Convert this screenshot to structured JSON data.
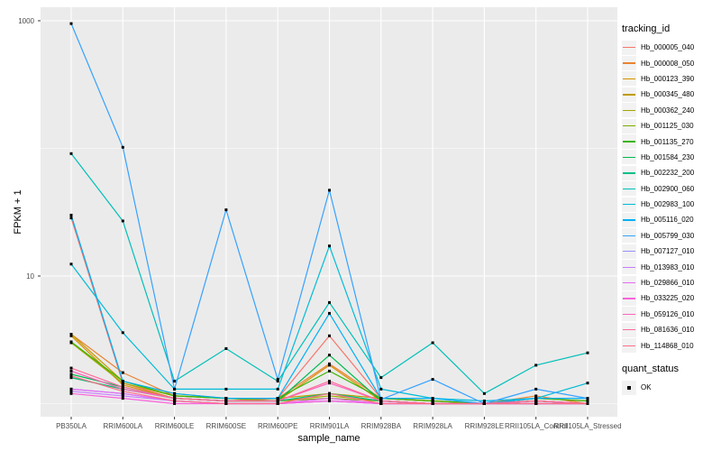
{
  "chart_data": {
    "type": "line",
    "title": "",
    "x_axis": {
      "label": "sample_name",
      "categories": [
        "PB350LA",
        "RRIM600LA",
        "RRIM600LE",
        "RRIM600SE",
        "RRIM600PE",
        "RRIM901LA",
        "RRIM928BA",
        "RRIM928LA",
        "RRIM928LE",
        "RRII105LA_Control",
        "RRII105LA_Stressed"
      ]
    },
    "y_axis": {
      "label": "FPKM + 1",
      "scale": "log10",
      "tick_labels": [
        "1000",
        "10"
      ],
      "tick_values": [
        1000,
        10
      ],
      "minor_gridline_values": [
        100,
        1
      ],
      "range_approx": [
        0.9,
        1100
      ]
    },
    "grid": true,
    "panel_background": "#EBEBEB",
    "gridline_color": "#FFFFFF",
    "point_color": "#000000",
    "legend": {
      "title": "tracking_id",
      "position": "right"
    },
    "point_status_legend": {
      "title": "quant_status",
      "items": [
        "OK"
      ]
    },
    "series": [
      {
        "name": "Hb_000005_040",
        "color": "#F8766D",
        "values": [
          28.5,
          1.45,
          1.1,
          1.05,
          1.1,
          3.4,
          1.1,
          1.05,
          1.0,
          1.1,
          1.05
        ]
      },
      {
        "name": "Hb_000008_050",
        "color": "#EA8331",
        "values": [
          3.5,
          1.75,
          1.15,
          1.1,
          1.1,
          2.05,
          1.1,
          1.05,
          1.0,
          1.15,
          1.0
        ]
      },
      {
        "name": "Hb_000123_390",
        "color": "#D89000",
        "values": [
          3.4,
          1.4,
          1.1,
          1.05,
          1.05,
          2.0,
          1.05,
          1.0,
          1.0,
          1.05,
          1.0
        ]
      },
      {
        "name": "Hb_000345_480",
        "color": "#C09B00",
        "values": [
          3.5,
          1.5,
          1.2,
          1.1,
          1.1,
          1.2,
          1.1,
          1.05,
          1.0,
          1.05,
          1.0
        ]
      },
      {
        "name": "Hb_000362_240",
        "color": "#A3A500",
        "values": [
          3.0,
          1.45,
          1.15,
          1.1,
          1.05,
          1.15,
          1.05,
          1.0,
          1.0,
          1.05,
          1.0
        ]
      },
      {
        "name": "Hb_001125_030",
        "color": "#7CAE00",
        "values": [
          1.6,
          1.3,
          1.1,
          1.05,
          1.05,
          1.1,
          1.05,
          1.0,
          1.0,
          1.0,
          1.0
        ]
      },
      {
        "name": "Hb_001135_270",
        "color": "#39B600",
        "values": [
          3.05,
          1.5,
          1.15,
          1.1,
          1.1,
          1.8,
          1.1,
          1.05,
          1.0,
          1.1,
          1.05
        ]
      },
      {
        "name": "Hb_001584_230",
        "color": "#00BB4E",
        "values": [
          1.7,
          1.35,
          1.1,
          1.05,
          1.05,
          2.4,
          1.05,
          1.0,
          1.0,
          1.05,
          1.0
        ]
      },
      {
        "name": "Hb_002232_200",
        "color": "#00C087",
        "values": [
          1.6,
          1.3,
          1.1,
          1.05,
          1.05,
          1.2,
          1.05,
          1.0,
          1.0,
          1.0,
          1.0
        ]
      },
      {
        "name": "Hb_002900_060",
        "color": "#00C0B8",
        "values": [
          91,
          27,
          1.5,
          2.7,
          1.5,
          6.2,
          1.6,
          3.0,
          1.2,
          2.0,
          2.5
        ]
      },
      {
        "name": "Hb_002983_100",
        "color": "#00BCD8",
        "values": [
          12.4,
          3.6,
          1.3,
          1.3,
          1.3,
          17.2,
          1.3,
          1.1,
          1.05,
          1.1,
          1.45
        ]
      },
      {
        "name": "Hb_005116_020",
        "color": "#00B0F6",
        "values": [
          30,
          1.5,
          1.2,
          1.1,
          1.1,
          5.1,
          1.1,
          1.1,
          1.0,
          1.1,
          1.1
        ]
      },
      {
        "name": "Hb_005799_030",
        "color": "#35A2FF",
        "values": [
          950,
          102,
          1.3,
          33,
          1.55,
          47,
          1.08,
          1.55,
          1.0,
          1.3,
          1.1
        ]
      },
      {
        "name": "Hb_007127_010",
        "color": "#9590FF",
        "values": [
          1.3,
          1.2,
          1.05,
          1.0,
          1.0,
          1.05,
          1.0,
          1.0,
          1.0,
          1.0,
          1.0
        ]
      },
      {
        "name": "Hb_013983_010",
        "color": "#C77CFF",
        "values": [
          1.25,
          1.15,
          1.05,
          1.0,
          1.0,
          1.05,
          1.0,
          1.0,
          1.0,
          1.0,
          1.0
        ]
      },
      {
        "name": "Hb_029866_010",
        "color": "#E76BF3",
        "values": [
          1.3,
          1.2,
          1.05,
          1.0,
          1.0,
          1.1,
          1.0,
          1.0,
          1.0,
          1.0,
          1.0
        ]
      },
      {
        "name": "Hb_033225_020",
        "color": "#FA62DB",
        "values": [
          1.2,
          1.1,
          1.0,
          1.0,
          1.0,
          1.05,
          1.0,
          1.0,
          1.0,
          1.0,
          1.0
        ]
      },
      {
        "name": "Hb_059126_010",
        "color": "#FF62BC",
        "values": [
          1.8,
          1.3,
          1.1,
          1.05,
          1.05,
          1.45,
          1.05,
          1.0,
          1.0,
          1.05,
          1.0
        ]
      },
      {
        "name": "Hb_081636_010",
        "color": "#FF6A9A",
        "values": [
          1.9,
          1.35,
          1.1,
          1.05,
          1.05,
          1.5,
          1.05,
          1.0,
          1.0,
          1.05,
          1.0
        ]
      },
      {
        "name": "Hb_114868_010",
        "color": "#FE6E88",
        "values": [
          1.65,
          1.25,
          1.05,
          1.0,
          1.0,
          1.2,
          1.0,
          1.0,
          1.0,
          1.0,
          1.0
        ]
      }
    ]
  }
}
